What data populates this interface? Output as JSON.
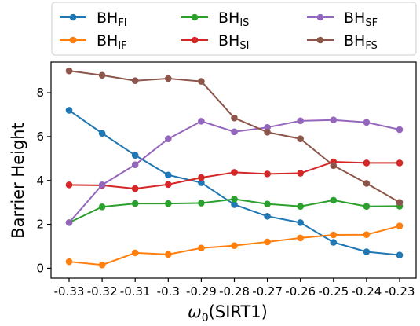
{
  "chart_data": {
    "type": "line",
    "x": [
      -0.33,
      -0.32,
      -0.31,
      -0.3,
      -0.29,
      -0.28,
      -0.27,
      -0.26,
      -0.25,
      -0.24,
      -0.23
    ],
    "x_tick_labels": [
      "-0.33",
      "-0.32",
      "-0.31",
      "-0.3",
      "-0.29",
      "-0.28",
      "-0.27",
      "-0.26",
      "-0.25",
      "-0.24",
      "-0.23"
    ],
    "y_ticks": [
      0,
      2,
      4,
      6,
      8
    ],
    "ylim": [
      -0.45,
      9.4
    ],
    "xlabel": {
      "main": "ω",
      "sub": "0",
      "rest": "(SIRT1)"
    },
    "ylabel": "Barrier Height",
    "grid": false,
    "legend_position": "top",
    "series": [
      {
        "name": "BH",
        "sub": "FI",
        "color": "#1f77b4",
        "values": [
          7.2,
          6.15,
          5.15,
          4.25,
          3.9,
          2.9,
          2.37,
          2.08,
          1.18,
          0.75,
          0.6
        ]
      },
      {
        "name": "BH",
        "sub": "IF",
        "color": "#ff7f0e",
        "values": [
          0.3,
          0.15,
          0.7,
          0.63,
          0.92,
          1.03,
          1.2,
          1.38,
          1.52,
          1.53,
          1.93
        ]
      },
      {
        "name": "BH",
        "sub": "IS",
        "color": "#2ca02c",
        "values": [
          2.08,
          2.8,
          2.95,
          2.95,
          2.97,
          3.15,
          2.93,
          2.82,
          3.1,
          2.82,
          2.83
        ]
      },
      {
        "name": "BH",
        "sub": "SI",
        "color": "#d62728",
        "values": [
          3.8,
          3.78,
          3.63,
          3.82,
          4.13,
          4.37,
          4.3,
          4.33,
          4.85,
          4.8,
          4.8
        ]
      },
      {
        "name": "BH",
        "sub": "SF",
        "color": "#9467bd",
        "values": [
          2.08,
          3.8,
          4.72,
          5.9,
          6.7,
          6.22,
          6.42,
          6.72,
          6.76,
          6.65,
          6.32
        ]
      },
      {
        "name": "BH",
        "sub": "FS",
        "color": "#8c564b",
        "values": [
          9.0,
          8.8,
          8.55,
          8.65,
          8.52,
          6.85,
          6.2,
          5.9,
          4.68,
          3.87,
          3.0
        ]
      }
    ]
  }
}
